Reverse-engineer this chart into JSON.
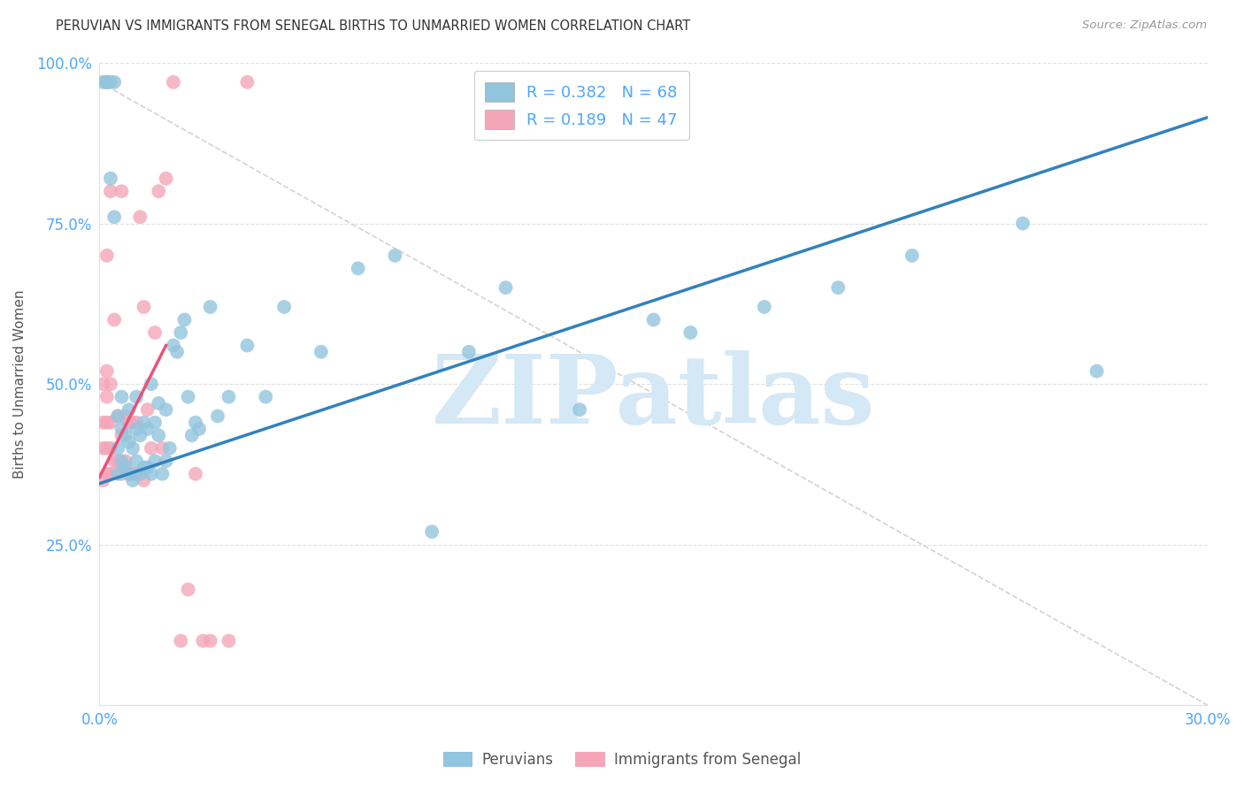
{
  "title": "PERUVIAN VS IMMIGRANTS FROM SENEGAL BIRTHS TO UNMARRIED WOMEN CORRELATION CHART",
  "source": "Source: ZipAtlas.com",
  "ylabel": "Births to Unmarried Women",
  "xlim": [
    0.0,
    0.3
  ],
  "ylim": [
    0.0,
    1.0
  ],
  "xtick_positions": [
    0.0,
    0.05,
    0.1,
    0.15,
    0.2,
    0.25,
    0.3
  ],
  "xtick_labels": [
    "0.0%",
    "",
    "",
    "",
    "",
    "",
    "30.0%"
  ],
  "ytick_positions": [
    0.0,
    0.25,
    0.5,
    0.75,
    1.0
  ],
  "ytick_labels": [
    "",
    "25.0%",
    "50.0%",
    "75.0%",
    "100.0%"
  ],
  "legend_label1": "Peruvians",
  "legend_label2": "Immigrants from Senegal",
  "R1": 0.382,
  "N1": 68,
  "R2": 0.189,
  "N2": 47,
  "blue_color": "#92c5de",
  "pink_color": "#f4a6b8",
  "blue_line_color": "#3182bd",
  "pink_line_color": "#e8547a",
  "watermark": "ZIPatlas",
  "watermark_color": "#d4e8f5",
  "blue_line_x0": 0.0,
  "blue_line_y0": 0.345,
  "blue_line_x1": 0.3,
  "blue_line_y1": 0.915,
  "pink_line_x0": 0.0,
  "pink_line_y0": 0.355,
  "pink_line_x1": 0.018,
  "pink_line_y1": 0.56,
  "dash_line_x0": 0.0,
  "dash_line_y0": 0.97,
  "dash_line_x1": 0.3,
  "dash_line_y1": 0.0,
  "blue_x": [
    0.001,
    0.002,
    0.002,
    0.002,
    0.003,
    0.003,
    0.004,
    0.004,
    0.005,
    0.005,
    0.005,
    0.006,
    0.006,
    0.006,
    0.007,
    0.007,
    0.008,
    0.008,
    0.008,
    0.009,
    0.009,
    0.01,
    0.01,
    0.01,
    0.011,
    0.011,
    0.012,
    0.012,
    0.013,
    0.013,
    0.014,
    0.014,
    0.015,
    0.015,
    0.016,
    0.016,
    0.017,
    0.018,
    0.018,
    0.019,
    0.02,
    0.021,
    0.022,
    0.023,
    0.024,
    0.025,
    0.026,
    0.027,
    0.03,
    0.032,
    0.035,
    0.04,
    0.045,
    0.05,
    0.06,
    0.07,
    0.08,
    0.09,
    0.1,
    0.11,
    0.13,
    0.15,
    0.16,
    0.18,
    0.2,
    0.22,
    0.25,
    0.27
  ],
  "blue_y": [
    0.97,
    0.97,
    0.97,
    0.97,
    0.82,
    0.97,
    0.76,
    0.97,
    0.36,
    0.4,
    0.45,
    0.38,
    0.43,
    0.48,
    0.37,
    0.42,
    0.36,
    0.41,
    0.46,
    0.35,
    0.4,
    0.38,
    0.43,
    0.48,
    0.36,
    0.42,
    0.37,
    0.44,
    0.37,
    0.43,
    0.36,
    0.5,
    0.38,
    0.44,
    0.47,
    0.42,
    0.36,
    0.38,
    0.46,
    0.4,
    0.56,
    0.55,
    0.58,
    0.6,
    0.48,
    0.42,
    0.44,
    0.43,
    0.62,
    0.45,
    0.48,
    0.56,
    0.48,
    0.62,
    0.55,
    0.68,
    0.7,
    0.27,
    0.55,
    0.65,
    0.46,
    0.6,
    0.58,
    0.62,
    0.65,
    0.7,
    0.75,
    0.52
  ],
  "pink_x": [
    0.001,
    0.001,
    0.001,
    0.001,
    0.002,
    0.002,
    0.002,
    0.002,
    0.002,
    0.002,
    0.003,
    0.003,
    0.003,
    0.003,
    0.003,
    0.004,
    0.004,
    0.005,
    0.005,
    0.006,
    0.006,
    0.006,
    0.007,
    0.007,
    0.008,
    0.008,
    0.009,
    0.009,
    0.01,
    0.01,
    0.011,
    0.012,
    0.012,
    0.013,
    0.014,
    0.015,
    0.016,
    0.017,
    0.018,
    0.02,
    0.022,
    0.024,
    0.026,
    0.028,
    0.03,
    0.035,
    0.04
  ],
  "pink_y": [
    0.35,
    0.4,
    0.44,
    0.5,
    0.36,
    0.4,
    0.44,
    0.48,
    0.52,
    0.7,
    0.36,
    0.4,
    0.44,
    0.5,
    0.8,
    0.38,
    0.6,
    0.38,
    0.45,
    0.36,
    0.42,
    0.8,
    0.38,
    0.45,
    0.36,
    0.44,
    0.36,
    0.44,
    0.36,
    0.44,
    0.76,
    0.62,
    0.35,
    0.46,
    0.4,
    0.58,
    0.8,
    0.4,
    0.82,
    0.97,
    0.1,
    0.18,
    0.36,
    0.1,
    0.1,
    0.1,
    0.97
  ]
}
